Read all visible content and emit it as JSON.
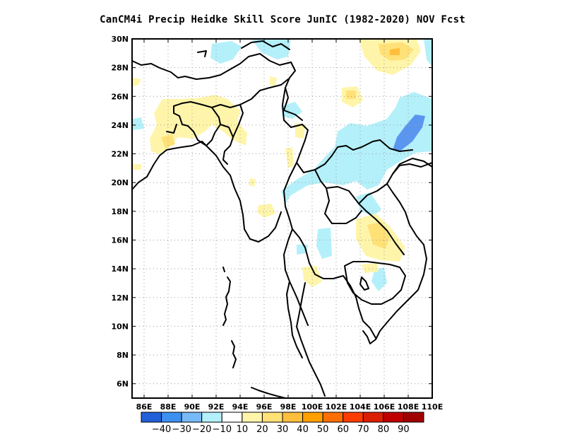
{
  "title": "CanCM4i Precip Heidke Skill Score JunIC (1982-2020) NOV Fcst",
  "map": {
    "lon_range": [
      85,
      110
    ],
    "lat_range": [
      5,
      30
    ],
    "lon_ticks": [
      {
        "value": 86,
        "label": "86E"
      },
      {
        "value": 88,
        "label": "88E"
      },
      {
        "value": 90,
        "label": "90E"
      },
      {
        "value": 92,
        "label": "92E"
      },
      {
        "value": 94,
        "label": "94E"
      },
      {
        "value": 96,
        "label": "96E"
      },
      {
        "value": 98,
        "label": "98E"
      },
      {
        "value": 100,
        "label": "100E"
      },
      {
        "value": 102,
        "label": "102E"
      },
      {
        "value": 104,
        "label": "104E"
      },
      {
        "value": 106,
        "label": "106E"
      },
      {
        "value": 108,
        "label": "108E"
      },
      {
        "value": 110,
        "label": "110E"
      }
    ],
    "lat_ticks": [
      {
        "value": 6,
        "label": "6N"
      },
      {
        "value": 8,
        "label": "8N"
      },
      {
        "value": 10,
        "label": "10N"
      },
      {
        "value": 12,
        "label": "12N"
      },
      {
        "value": 14,
        "label": "14N"
      },
      {
        "value": 16,
        "label": "16N"
      },
      {
        "value": 18,
        "label": "18N"
      },
      {
        "value": 20,
        "label": "20N"
      },
      {
        "value": 22,
        "label": "22N"
      },
      {
        "value": 24,
        "label": "24N"
      },
      {
        "value": 26,
        "label": "26N"
      },
      {
        "value": 28,
        "label": "28N"
      },
      {
        "value": 30,
        "label": "30N"
      }
    ],
    "grid": "dotted",
    "shading": [
      {
        "level": "-10 to 10",
        "color": "#ffffff"
      },
      {
        "level": "-20 to -10",
        "color": "#b4f0fa",
        "region": "far north near 95E-99E, 29N-30N"
      },
      {
        "level": "10 to 20",
        "color": "#fff5aa",
        "region": "Bangladesh / NE India 88E-93E, 22N-26N"
      },
      {
        "level": "20 to 30",
        "color": "#ffe178",
        "region": "south China 105E-107E, 28N-30N"
      },
      {
        "level": "-20 to -10",
        "color": "#b4f0fa",
        "region": "Laos / Vietnam 98E-110E, 19N-26N"
      },
      {
        "level": "-40 to -30",
        "color": "#5a96f0",
        "region": "north Vietnam 105E-107E, 22N-24N"
      },
      {
        "level": "10 to 20",
        "color": "#fff5aa",
        "region": "Thailand 101E-104E, 15N-17N"
      }
    ]
  },
  "colorbar": {
    "colors": [
      "#2160d8",
      "#3c90f0",
      "#78b9f7",
      "#b4f0fa",
      "#ffffff",
      "#fff5aa",
      "#ffe178",
      "#ffbe3c",
      "#ffa000",
      "#ff6e00",
      "#ff3c00",
      "#dc1e00",
      "#c00000",
      "#a00000"
    ],
    "labels": [
      "-40",
      "-30",
      "-20",
      "-10",
      "10",
      "20",
      "30",
      "40",
      "50",
      "60",
      "70",
      "80",
      "90"
    ]
  }
}
